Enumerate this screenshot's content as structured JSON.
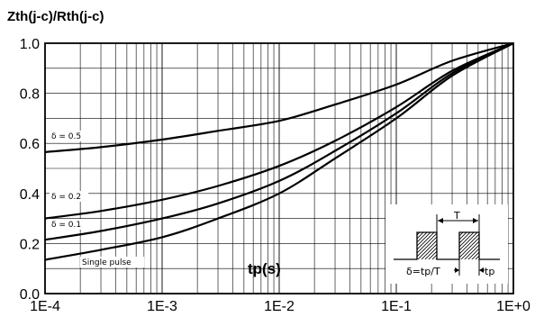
{
  "chart_data": {
    "type": "line",
    "ylabel": "Zth(j-c)/Rth(j-c)",
    "xlabel": "tp(s)",
    "x_scale": "log",
    "xlim": [
      0.0001,
      1
    ],
    "ylim": [
      0.0,
      1.0
    ],
    "grid": true,
    "x_tick_labels": [
      "1E-4",
      "1E-3",
      "1E-2",
      "1E-1",
      "1E+0"
    ],
    "y_tick_labels": [
      "0.0",
      "0.2",
      "0.4",
      "0.6",
      "0.8",
      "1.0"
    ],
    "series": [
      {
        "name": "δ = 0.5",
        "x": [
          0.0001,
          0.0003,
          0.001,
          0.003,
          0.01,
          0.03,
          0.1,
          0.3,
          1
        ],
        "y": [
          0.565,
          0.585,
          0.615,
          0.65,
          0.69,
          0.755,
          0.835,
          0.93,
          1.0
        ]
      },
      {
        "name": "δ = 0.2",
        "x": [
          0.0001,
          0.0003,
          0.001,
          0.003,
          0.01,
          0.03,
          0.1,
          0.3,
          1
        ],
        "y": [
          0.3,
          0.33,
          0.375,
          0.43,
          0.51,
          0.61,
          0.745,
          0.89,
          1.0
        ]
      },
      {
        "name": "δ = 0.1",
        "x": [
          0.0001,
          0.0003,
          0.001,
          0.003,
          0.01,
          0.03,
          0.1,
          0.3,
          1
        ],
        "y": [
          0.215,
          0.25,
          0.3,
          0.36,
          0.45,
          0.57,
          0.72,
          0.88,
          1.0
        ]
      },
      {
        "name": "Single pulse",
        "x": [
          0.0001,
          0.0003,
          0.001,
          0.003,
          0.01,
          0.03,
          0.1,
          0.3,
          1
        ],
        "y": [
          0.135,
          0.175,
          0.225,
          0.3,
          0.4,
          0.54,
          0.7,
          0.87,
          1.0
        ]
      }
    ],
    "inset": {
      "period_label": "T",
      "duty_label": "δ=tp/T",
      "pulse_label": "tp"
    }
  }
}
